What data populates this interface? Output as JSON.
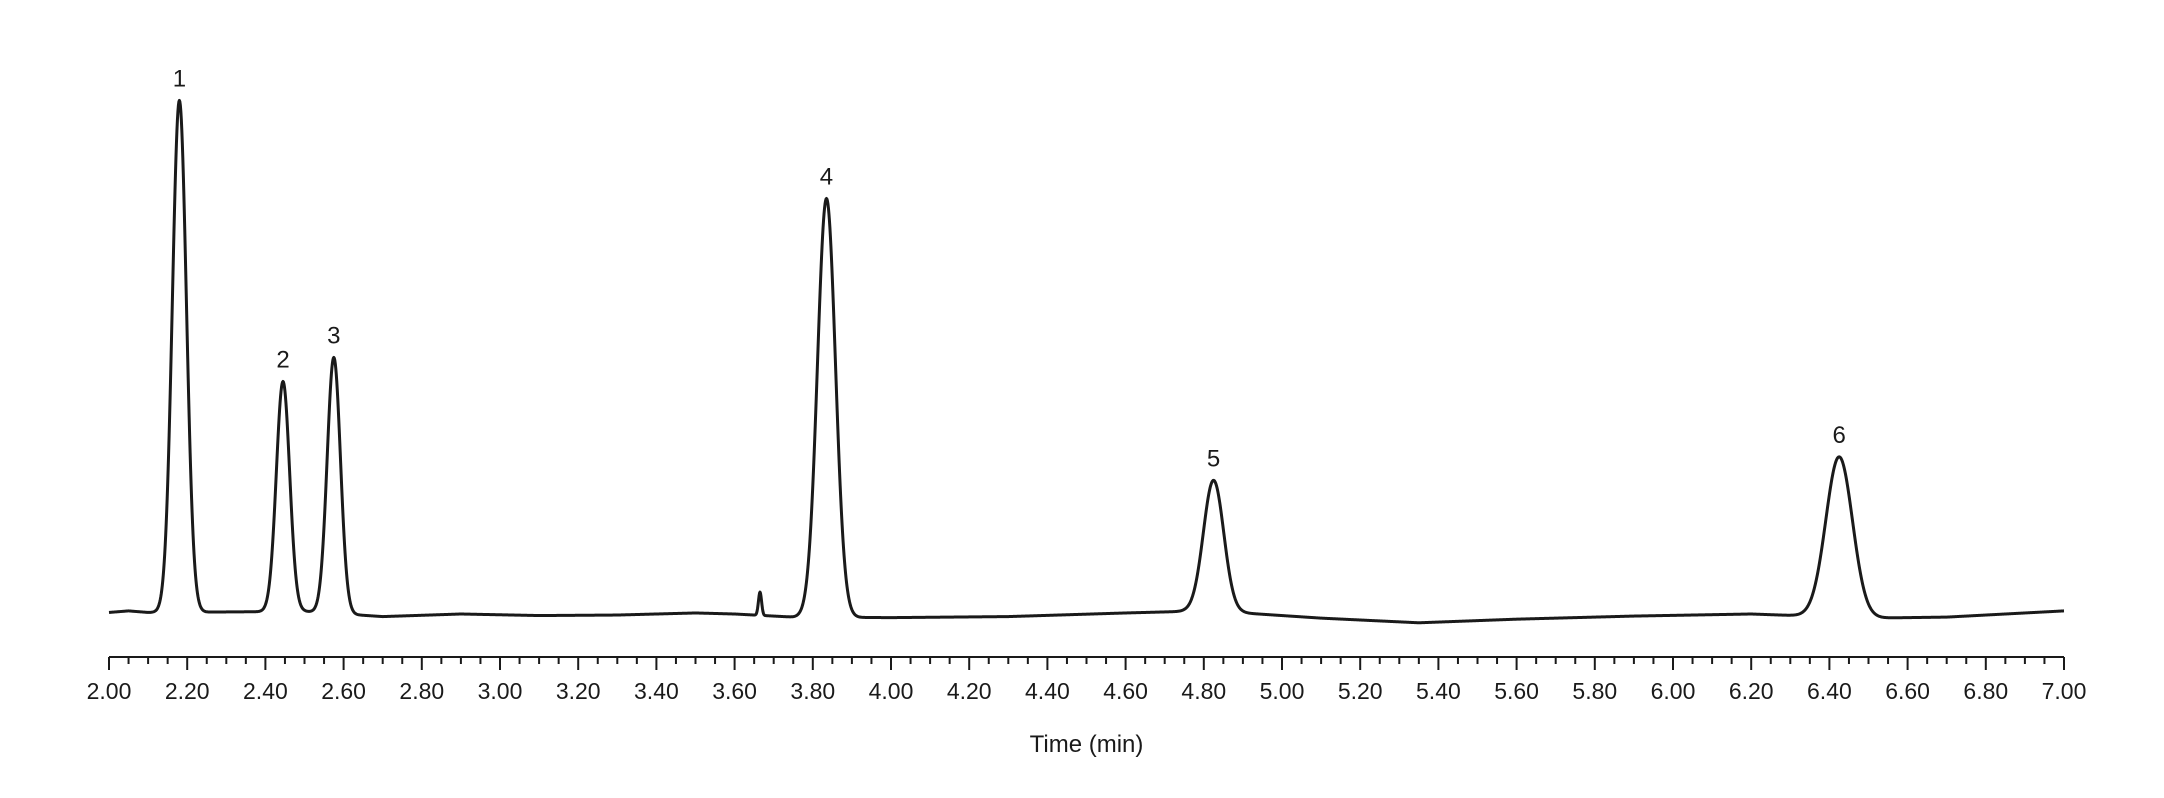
{
  "chart_data": {
    "type": "line",
    "title": "",
    "xlabel": "Time (min)",
    "ylabel": "",
    "xlim": [
      2.0,
      7.0
    ],
    "ylim": [
      0,
      1
    ],
    "grid": false,
    "line_color": "#1a1a1a",
    "x_ticks": [
      "2.00",
      "2.20",
      "2.40",
      "2.60",
      "2.80",
      "3.00",
      "3.20",
      "3.40",
      "3.60",
      "3.80",
      "4.00",
      "4.20",
      "4.40",
      "4.60",
      "4.80",
      "5.00",
      "5.20",
      "5.40",
      "5.60",
      "5.80",
      "6.00",
      "6.20",
      "6.40",
      "6.60",
      "6.80",
      "7.00"
    ],
    "peaks": [
      {
        "label": "1",
        "x": 2.18,
        "height": 0.99,
        "width": 0.018
      },
      {
        "label": "2",
        "x": 2.445,
        "height": 0.445,
        "width": 0.017
      },
      {
        "label": "3",
        "x": 2.575,
        "height": 0.495,
        "width": 0.017
      },
      {
        "label": "4",
        "x": 3.835,
        "height": 0.81,
        "width": 0.023
      },
      {
        "label": "5",
        "x": 4.825,
        "height": 0.255,
        "width": 0.026
      },
      {
        "label": "6",
        "x": 6.425,
        "height": 0.31,
        "width": 0.034
      }
    ],
    "minor_peaks": [
      {
        "x": 3.665,
        "height": 0.045,
        "width": 0.004
      }
    ],
    "baseline": [
      [
        2.0,
        0.003
      ],
      [
        2.05,
        0.006
      ],
      [
        2.1,
        0.003
      ],
      [
        2.3,
        0.004
      ],
      [
        2.5,
        0.005
      ],
      [
        2.7,
        -0.005
      ],
      [
        2.9,
        0.0
      ],
      [
        3.1,
        -0.003
      ],
      [
        3.3,
        -0.002
      ],
      [
        3.5,
        0.002
      ],
      [
        3.6,
        0.0
      ],
      [
        3.75,
        -0.006
      ],
      [
        4.0,
        -0.007
      ],
      [
        4.3,
        -0.005
      ],
      [
        4.6,
        0.002
      ],
      [
        4.75,
        0.005
      ],
      [
        4.9,
        0.002
      ],
      [
        5.1,
        -0.008
      ],
      [
        5.35,
        -0.017
      ],
      [
        5.6,
        -0.01
      ],
      [
        5.9,
        -0.004
      ],
      [
        6.2,
        0.0
      ],
      [
        6.5,
        -0.008
      ],
      [
        6.7,
        -0.006
      ],
      [
        7.0,
        0.006
      ]
    ]
  }
}
